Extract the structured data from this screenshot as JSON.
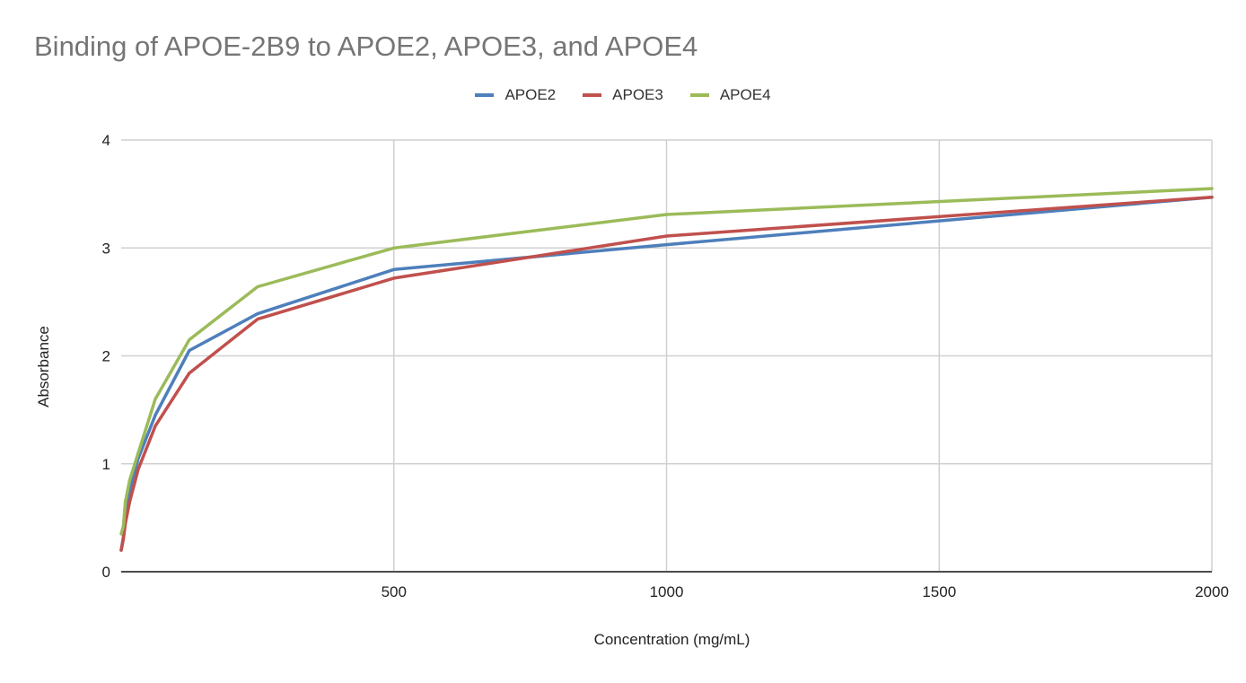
{
  "chart_data": {
    "type": "line",
    "title": "Binding of APOE-2B9 to APOE2, APOE3, and APOE4",
    "xlabel": "Concentration (mg/mL)",
    "ylabel": "Absorbance",
    "xlim": [
      0,
      2000
    ],
    "ylim": [
      0,
      4
    ],
    "xticks": [
      500,
      1000,
      1500,
      2000
    ],
    "yticks": [
      0,
      1,
      2,
      3,
      4
    ],
    "grid": true,
    "legend_position": "top-center",
    "x": [
      0,
      3.9,
      7.8,
      15.6,
      31.25,
      62.5,
      125,
      250,
      500,
      1000,
      2000
    ],
    "series": [
      {
        "name": "APOE2",
        "color": "#4E7FBB",
        "values": [
          0.2,
          0.32,
          0.5,
          0.75,
          1.05,
          1.45,
          2.05,
          2.39,
          2.8,
          3.03,
          3.47
        ]
      },
      {
        "name": "APOE3",
        "color": "#C0504D",
        "values": [
          0.2,
          0.3,
          0.45,
          0.65,
          0.95,
          1.35,
          1.84,
          2.34,
          2.72,
          3.11,
          3.47
        ]
      },
      {
        "name": "APOE4",
        "color": "#9BBB59",
        "values": [
          0.35,
          0.42,
          0.65,
          0.85,
          1.1,
          1.6,
          2.15,
          2.64,
          3.0,
          3.31,
          3.55
        ]
      }
    ]
  }
}
